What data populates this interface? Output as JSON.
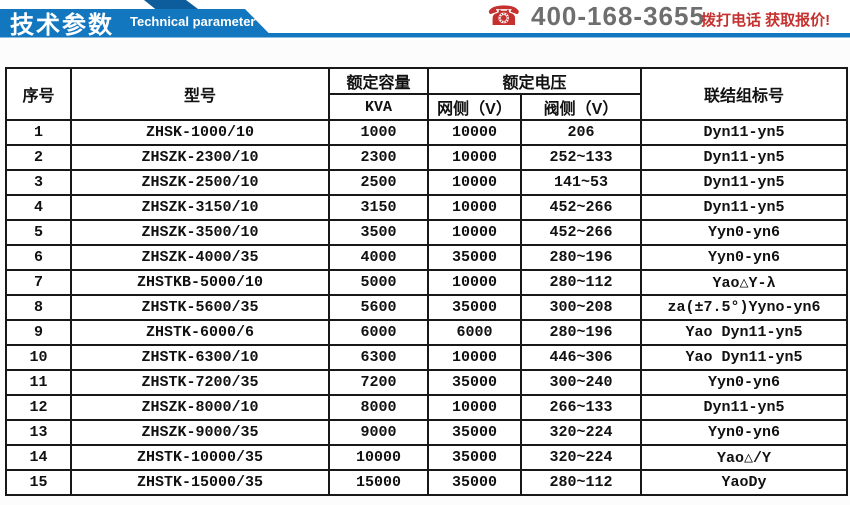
{
  "banner": {
    "title_cn": "技术参数",
    "title_en": "Technical parameter",
    "main_color": "#1377bf",
    "dark_fold_color": "#0d5d9c"
  },
  "contact": {
    "phone_icon": "phone-icon",
    "phone_number": "400-168-3655",
    "cta": "拨打电话 获取报价!",
    "accent_red": "#c5312f",
    "number_gray": "#6e6e6e"
  },
  "table": {
    "headers": {
      "seq": "序号",
      "model": "型号",
      "capacity": "额定容量",
      "capacity_unit": "KVA",
      "voltage": "额定电压",
      "grid": "网侧（V）",
      "valve": "阀侧（V）",
      "connection": "联结组标号"
    },
    "rows": [
      {
        "seq": "1",
        "model": "ZHSK-1000/10",
        "kva": "1000",
        "grid": "10000",
        "valve": "206",
        "conn": "Dyn11-yn5"
      },
      {
        "seq": "2",
        "model": "ZHSZK-2300/10",
        "kva": "2300",
        "grid": "10000",
        "valve": "252~133",
        "conn": "Dyn11-yn5"
      },
      {
        "seq": "3",
        "model": "ZHSZK-2500/10",
        "kva": "2500",
        "grid": "10000",
        "valve": "141~53",
        "conn": "Dyn11-yn5"
      },
      {
        "seq": "4",
        "model": "ZHSZK-3150/10",
        "kva": "3150",
        "grid": "10000",
        "valve": "452~266",
        "conn": "Dyn11-yn5"
      },
      {
        "seq": "5",
        "model": "ZHSZK-3500/10",
        "kva": "3500",
        "grid": "10000",
        "valve": "452~266",
        "conn": "Yyn0-yn6"
      },
      {
        "seq": "6",
        "model": "ZHSZK-4000/35",
        "kva": "4000",
        "grid": "35000",
        "valve": "280~196",
        "conn": "Yyn0-yn6"
      },
      {
        "seq": "7",
        "model": "ZHSTKB-5000/10",
        "kva": "5000",
        "grid": "10000",
        "valve": "280~112",
        "conn": "Yao△Y-λ"
      },
      {
        "seq": "8",
        "model": "ZHSTK-5600/35",
        "kva": "5600",
        "grid": "35000",
        "valve": "300~208",
        "conn": "za(±7.5°)Yyno-yn6"
      },
      {
        "seq": "9",
        "model": "ZHSTK-6000/6",
        "kva": "6000",
        "grid": "6000",
        "valve": "280~196",
        "conn": "Yao Dyn11-yn5"
      },
      {
        "seq": "10",
        "model": "ZHSTK-6300/10",
        "kva": "6300",
        "grid": "10000",
        "valve": "446~306",
        "conn": "Yao Dyn11-yn5"
      },
      {
        "seq": "11",
        "model": "ZHSTK-7200/35",
        "kva": "7200",
        "grid": "35000",
        "valve": "300~240",
        "conn": "Yyn0-yn6"
      },
      {
        "seq": "12",
        "model": "ZHSZK-8000/10",
        "kva": "8000",
        "grid": "10000",
        "valve": "266~133",
        "conn": "Dyn11-yn5"
      },
      {
        "seq": "13",
        "model": "ZHSZK-9000/35",
        "kva": "9000",
        "grid": "35000",
        "valve": "320~224",
        "conn": "Yyn0-yn6"
      },
      {
        "seq": "14",
        "model": "ZHSTK-10000/35",
        "kva": "10000",
        "grid": "35000",
        "valve": "320~224",
        "conn": "Yao△/Y"
      },
      {
        "seq": "15",
        "model": "ZHSTK-15000/35",
        "kva": "15000",
        "grid": "35000",
        "valve": "280~112",
        "conn": "YaoDy"
      }
    ]
  }
}
